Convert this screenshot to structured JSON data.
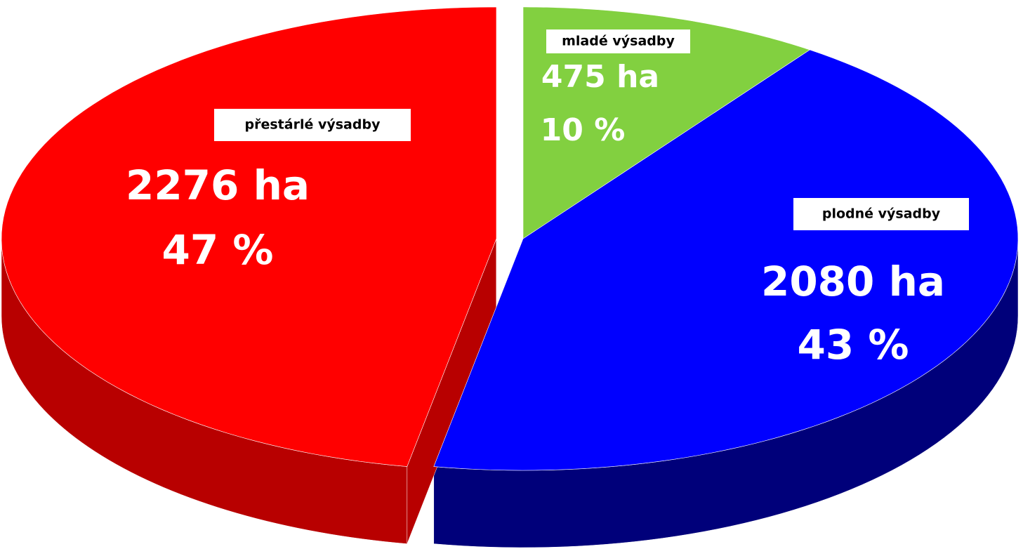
{
  "chart_data": {
    "type": "pie3d",
    "categories": [
      "mladé výsadby",
      "plodné výsadby",
      "přestárlé výsadby"
    ],
    "values": [
      475,
      2080,
      2276
    ],
    "value_labels": [
      "475 ha",
      "2080 ha",
      "2276 ha"
    ],
    "percent_labels": [
      "10 %",
      "43 %",
      "47 %"
    ],
    "colors": [
      "#82d040",
      "#0000ff",
      "#ff0000"
    ],
    "side_colors": [
      "#5c9a2a",
      "#00007a",
      "#b80000"
    ]
  }
}
